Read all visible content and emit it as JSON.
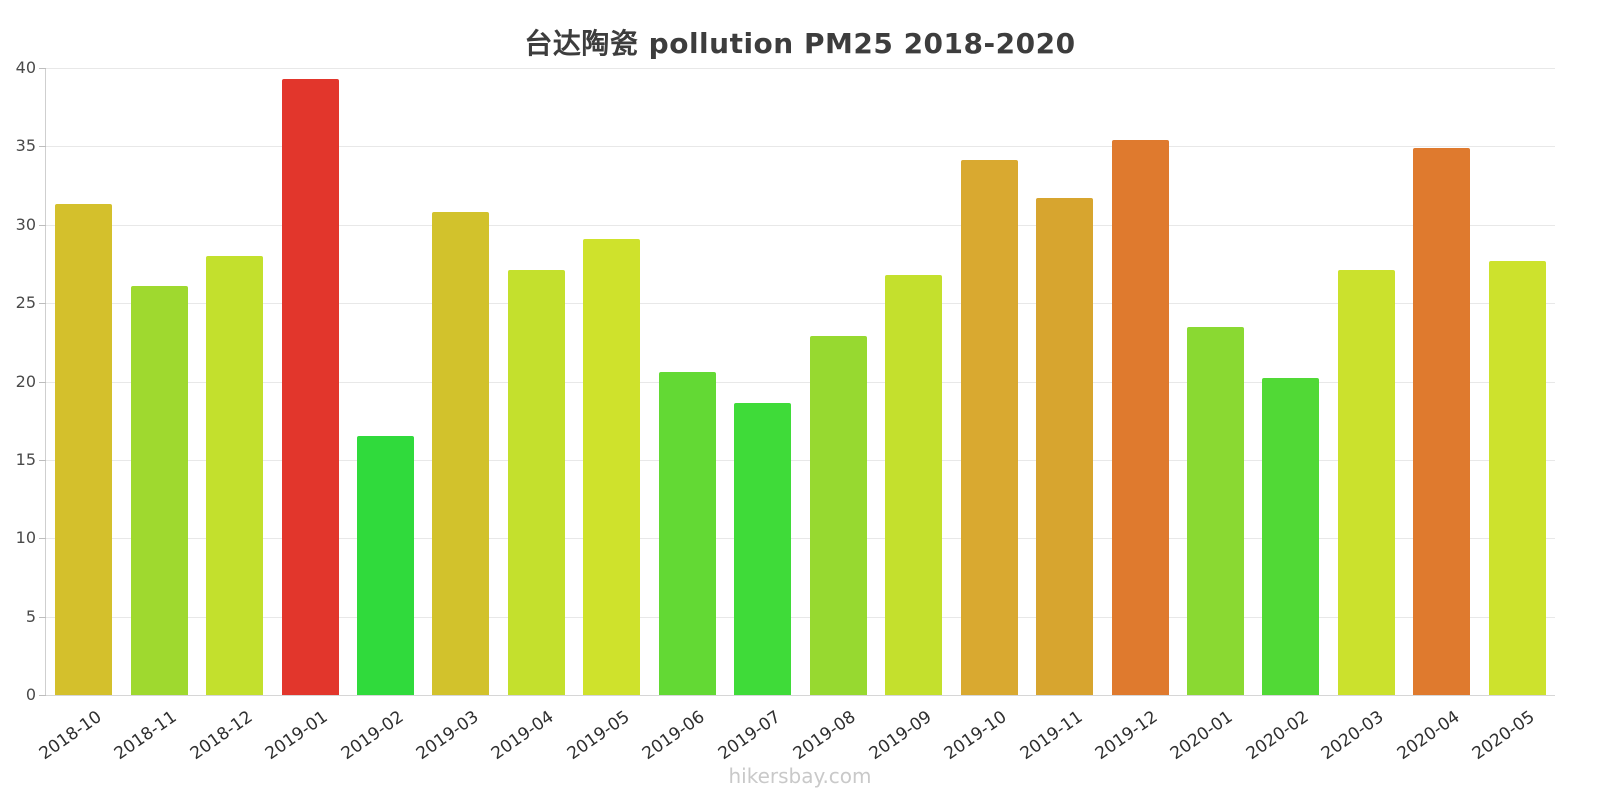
{
  "page": {
    "footer": "hikersbay.com"
  },
  "chart_data": {
    "type": "bar",
    "title": "台达陶瓷 pollution PM25 2018-2020",
    "categories": [
      "2018-10",
      "2018-11",
      "2018-12",
      "2019-01",
      "2019-02",
      "2019-03",
      "2019-04",
      "2019-05",
      "2019-06",
      "2019-07",
      "2019-08",
      "2019-09",
      "2019-10",
      "2019-11",
      "2019-12",
      "2020-01",
      "2020-02",
      "2020-03",
      "2020-04",
      "2020-05"
    ],
    "values": [
      31.3,
      26.1,
      28.0,
      39.3,
      16.5,
      30.8,
      27.1,
      29.1,
      20.6,
      18.6,
      22.9,
      26.8,
      34.1,
      31.7,
      35.4,
      23.5,
      20.2,
      27.1,
      34.9,
      27.7
    ],
    "colors": [
      "#d4c02c",
      "#9fd92f",
      "#c3e02d",
      "#e2362c",
      "#30da3c",
      "#d2c22c",
      "#c4e02d",
      "#cfe22c",
      "#63d934",
      "#3fdb39",
      "#97d930",
      "#c4e02d",
      "#d9a930",
      "#d7a52f",
      "#df7a2e",
      "#8ad932",
      "#51d936",
      "#cbe12d",
      "#df7a2e",
      "#cde22d"
    ],
    "xlabel": "",
    "ylabel": "",
    "ylim": [
      0,
      40
    ],
    "yticks": [
      0,
      5,
      10,
      15,
      20,
      25,
      30,
      35,
      40
    ],
    "grid": true,
    "legend": false
  }
}
